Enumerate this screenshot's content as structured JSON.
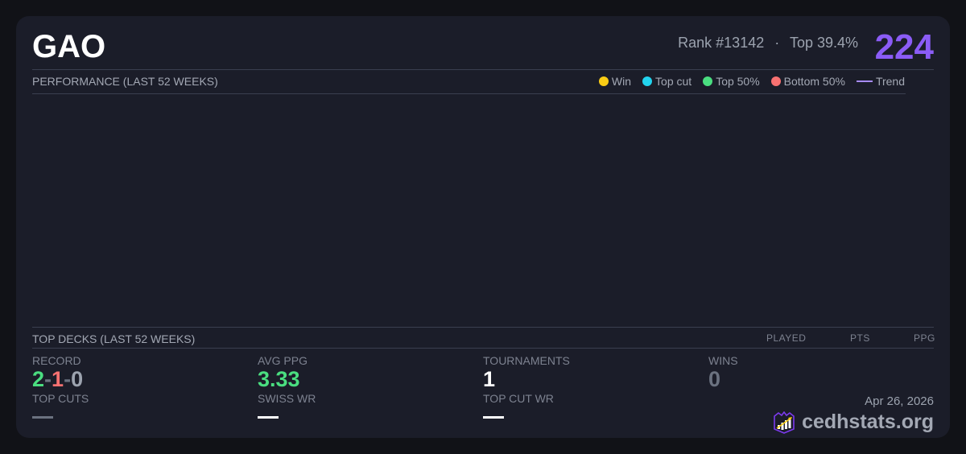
{
  "header": {
    "title": "GAO",
    "rank": "Rank #13142",
    "separator": "·",
    "top_percent": "Top 39.4%",
    "score": "224"
  },
  "performance": {
    "title": "PERFORMANCE (LAST 52 WEEKS)",
    "legend": [
      {
        "label": "Win",
        "color": "#facc15",
        "shape": "dot"
      },
      {
        "label": "Top cut",
        "color": "#22d3ee",
        "shape": "dot"
      },
      {
        "label": "Top 50%",
        "color": "#4ade80",
        "shape": "dot"
      },
      {
        "label": "Bottom 50%",
        "color": "#f87171",
        "shape": "dot"
      },
      {
        "label": "Trend",
        "color": "#a78bfa",
        "shape": "line"
      }
    ]
  },
  "top_decks": {
    "title": "TOP DECKS (LAST 52 WEEKS)",
    "columns": [
      "PLAYED",
      "PTS",
      "PPG"
    ]
  },
  "stats": {
    "record": {
      "label": "RECORD",
      "wins": "2",
      "losses": "1",
      "draws": "0",
      "sep": "-"
    },
    "avg_ppg": {
      "label": "AVG PPG",
      "value": "3.33"
    },
    "tournaments": {
      "label": "TOURNAMENTS",
      "value": "1"
    },
    "wins": {
      "label": "WINS",
      "value": "0"
    },
    "top_cuts": {
      "label": "TOP CUTS",
      "value": "—"
    },
    "swiss_wr": {
      "label": "SWISS WR",
      "value": "—"
    },
    "top_cut_wr": {
      "label": "TOP CUT WR",
      "value": "—"
    }
  },
  "footer": {
    "date": "Apr 26, 2026",
    "brand": "cedhstats.org",
    "logo_icon": "crown-chart-icon"
  },
  "colors": {
    "accent": "#8b5cf6",
    "green": "#4ade80",
    "red": "#f87171",
    "muted": "#9ca3af"
  }
}
